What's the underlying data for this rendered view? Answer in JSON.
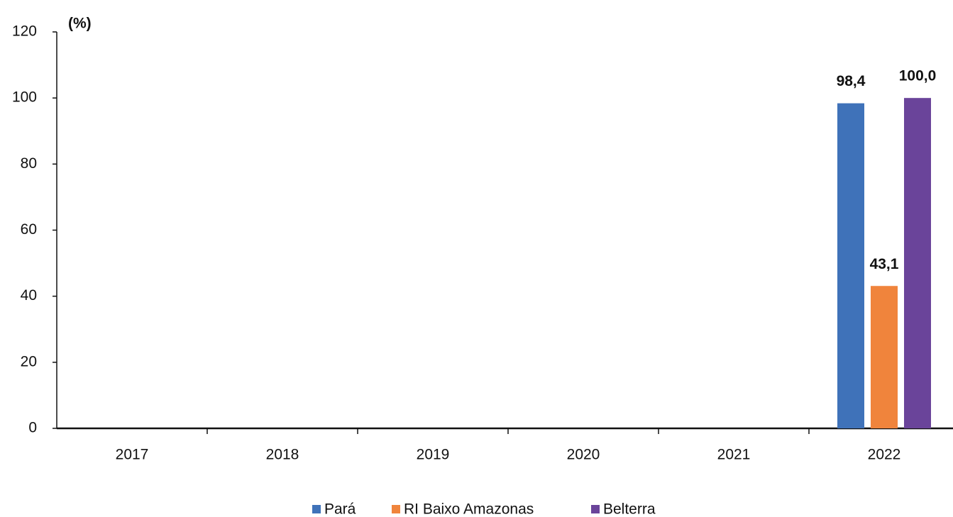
{
  "chart_data": {
    "type": "bar",
    "y_label": "(%)",
    "categories": [
      "2017",
      "2018",
      "2019",
      "2020",
      "2021",
      "2022"
    ],
    "series": [
      {
        "name": "Pará",
        "color": "#3f72b9",
        "values": [
          null,
          null,
          null,
          null,
          null,
          98.4
        ],
        "value_labels": [
          null,
          null,
          null,
          null,
          null,
          "98,4"
        ]
      },
      {
        "name": "RI Baixo Amazonas",
        "color": "#f0843c",
        "values": [
          null,
          null,
          null,
          null,
          null,
          43.1
        ],
        "value_labels": [
          null,
          null,
          null,
          null,
          null,
          "43,1"
        ]
      },
      {
        "name": "Belterra",
        "color": "#6a449a",
        "values": [
          null,
          null,
          null,
          null,
          null,
          100.0
        ],
        "value_labels": [
          null,
          null,
          null,
          null,
          null,
          "100,0"
        ]
      }
    ],
    "ylim": [
      0,
      120
    ],
    "yticks": [
      0,
      20,
      40,
      60,
      80,
      100,
      120
    ],
    "grid": false,
    "legend": "bottom"
  }
}
